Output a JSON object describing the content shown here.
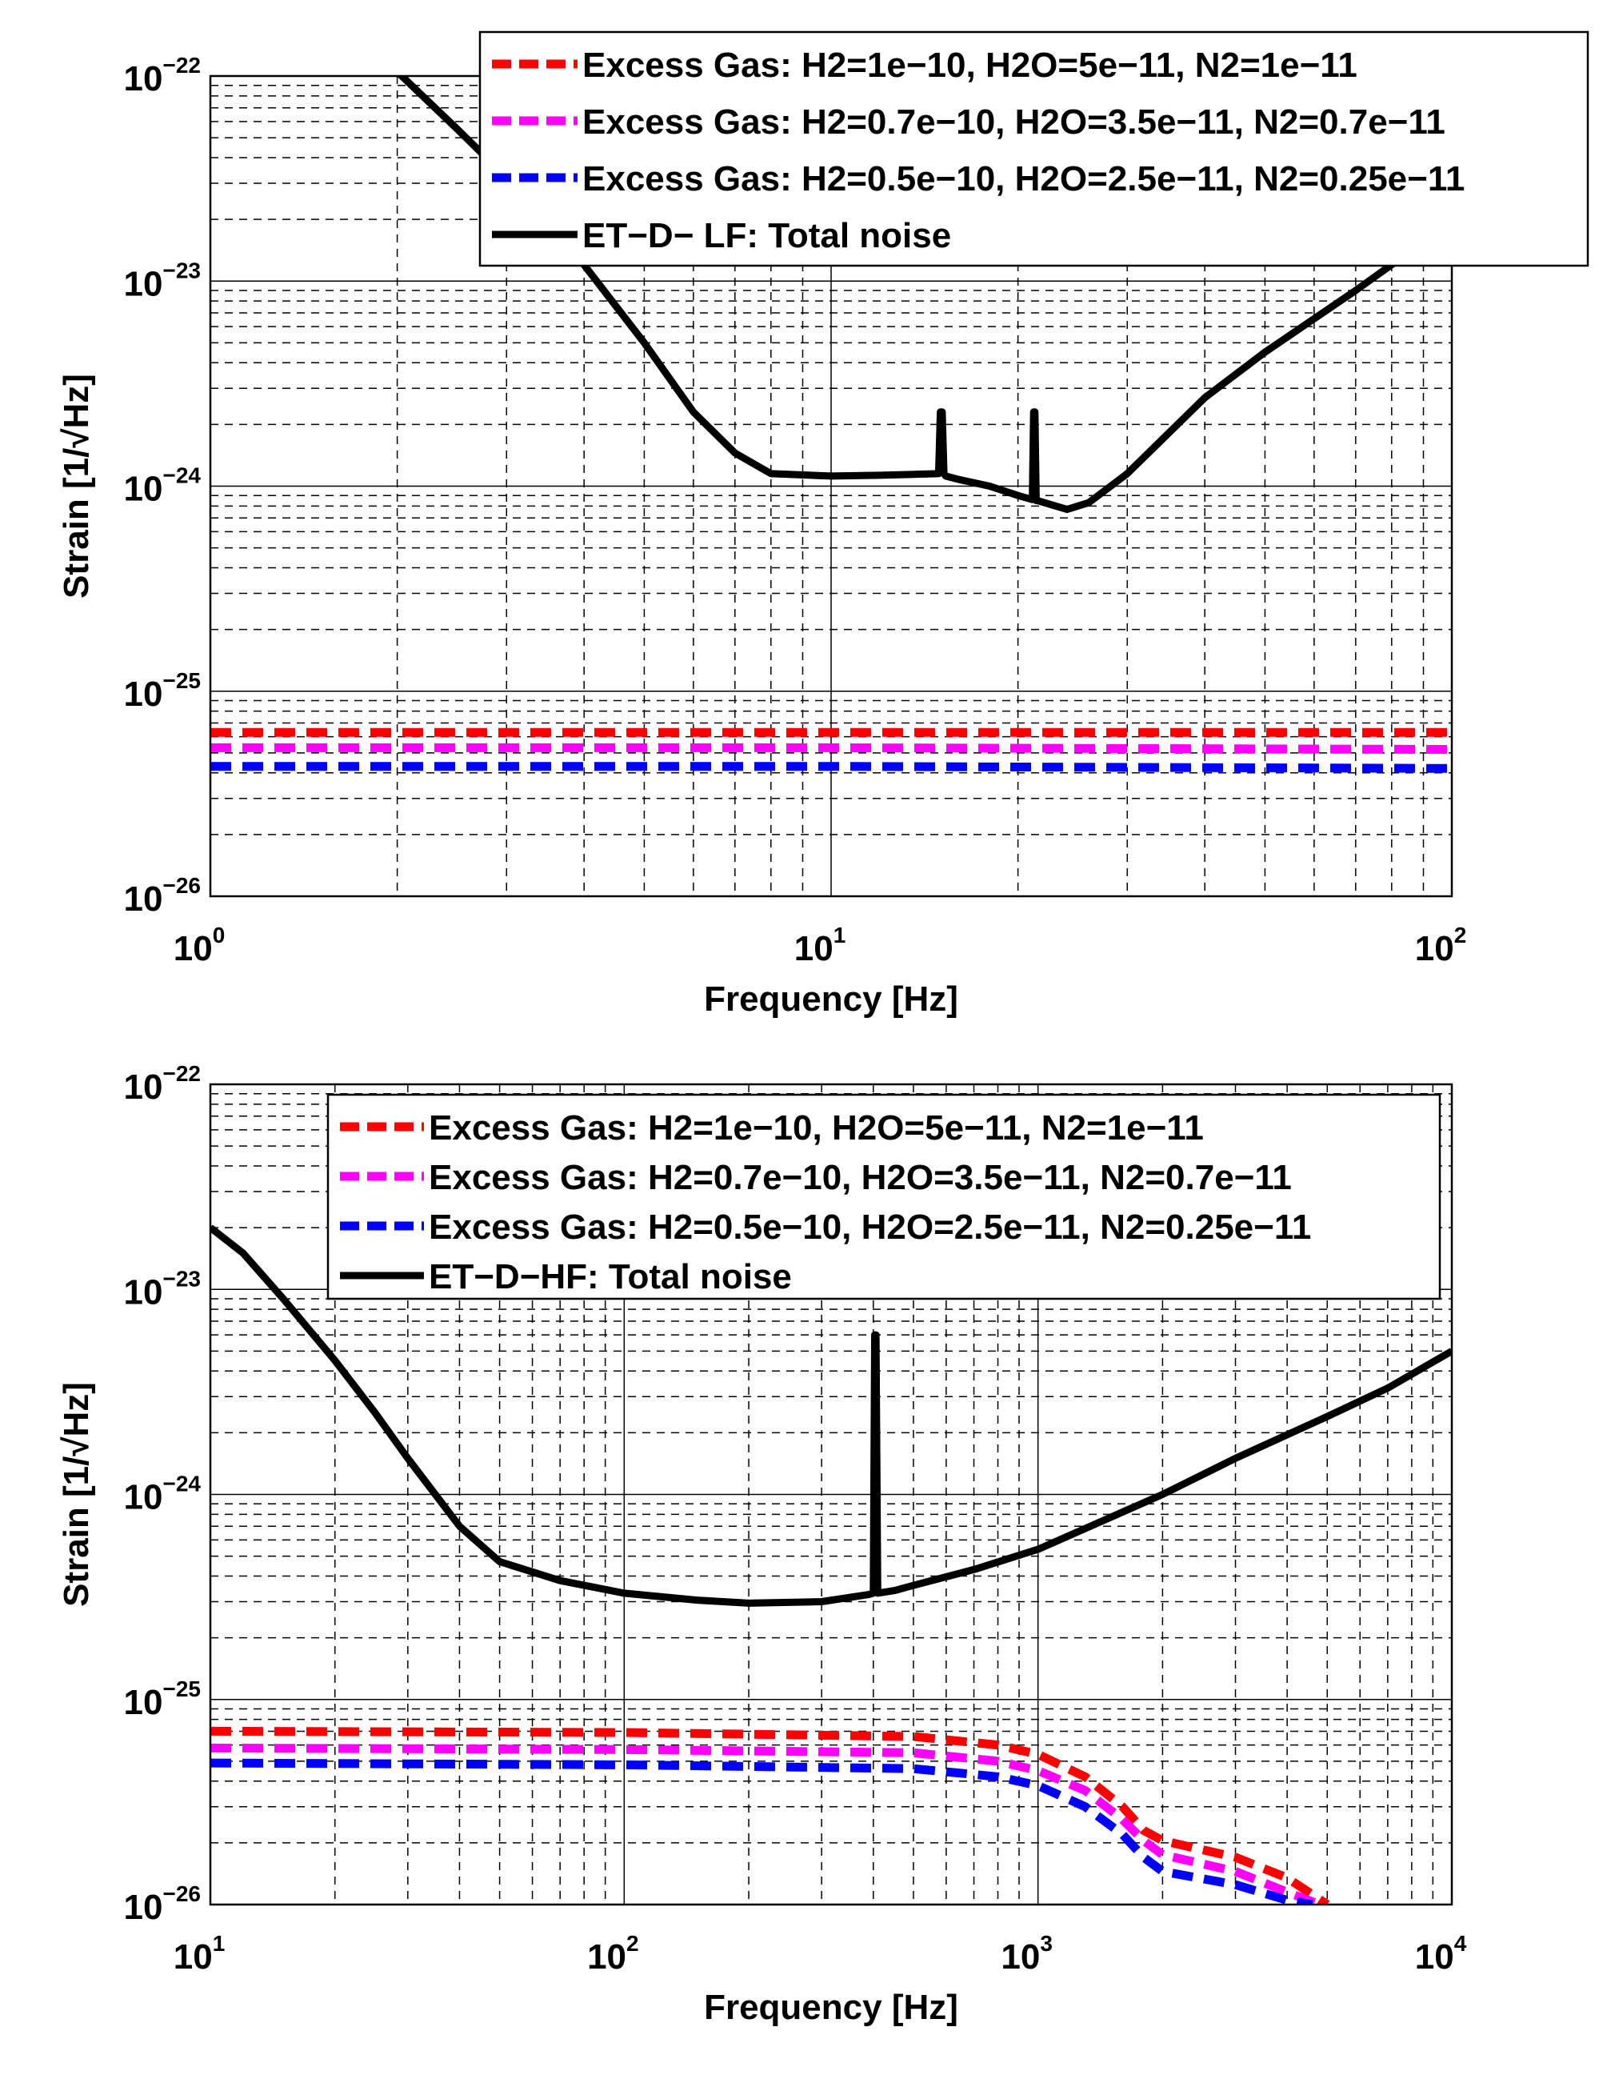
{
  "chart_data": [
    {
      "type": "line",
      "title": "",
      "xlabel": "Frequency [Hz]",
      "ylabel": "Strain [1/√Hz]",
      "xscale": "log",
      "yscale": "log",
      "xlim": [
        1,
        100
      ],
      "ylim": [
        1e-26,
        1e-22
      ],
      "grid": true,
      "legend_position": "top-right",
      "x_ticks": [
        {
          "base": "10",
          "exp": "0",
          "value": 1
        },
        {
          "base": "10",
          "exp": "1",
          "value": 10
        },
        {
          "base": "10",
          "exp": "2",
          "value": 100
        }
      ],
      "y_ticks": [
        {
          "base": "10",
          "exp": "−22",
          "value": 1e-22
        },
        {
          "base": "10",
          "exp": "−23",
          "value": 1e-23
        },
        {
          "base": "10",
          "exp": "−24",
          "value": 1e-24
        },
        {
          "base": "10",
          "exp": "−25",
          "value": 1e-25
        },
        {
          "base": "10",
          "exp": "−26",
          "value": 1e-26
        }
      ],
      "series": [
        {
          "name": "Excess Gas: H2=1e−10, H2O=5e−11, N2=1e−11",
          "color": "#ff0000",
          "style": "dashed",
          "x": [
            1,
            10,
            100
          ],
          "y": [
            6.3e-26,
            6.3e-26,
            6.3e-26
          ]
        },
        {
          "name": "Excess Gas: H2=0.7e−10, H2O=3.5e−11, N2=0.7e−11",
          "color": "#ff00ff",
          "style": "dashed",
          "x": [
            1,
            10,
            100
          ],
          "y": [
            5.3e-26,
            5.3e-26,
            5.2e-26
          ]
        },
        {
          "name": "Excess Gas: H2=0.5e−10, H2O=2.5e−11, N2=0.25e−11",
          "color": "#0000ff",
          "style": "dashed",
          "x": [
            1,
            10,
            100
          ],
          "y": [
            4.3e-26,
            4.3e-26,
            4.2e-26
          ]
        },
        {
          "name": "ET−D− LF: Total noise",
          "color": "#000000",
          "style": "solid",
          "x": [
            1.75,
            2,
            2.5,
            3,
            4,
            5,
            6,
            7,
            8,
            10,
            12,
            14.9,
            15,
            15.1,
            15.2,
            15.3,
            16,
            18,
            20,
            21.1,
            21.2,
            21.3,
            21.4,
            21.5,
            24,
            26,
            30,
            40,
            50,
            70,
            100
          ],
          "y": [
            1.6e-22,
            1.05e-22,
            5.5e-23,
            3.2e-23,
            1.2e-23,
            5e-24,
            2.3e-24,
            1.45e-24,
            1.15e-24,
            1.12e-24,
            1.13e-24,
            1.15e-24,
            2.3e-24,
            2.3e-24,
            1.15e-24,
            1.12e-24,
            1.08e-24,
            1e-24,
            9e-25,
            8.6e-25,
            2.3e-24,
            2.3e-24,
            8.5e-25,
            8.5e-25,
            7.7e-25,
            8.3e-25,
            1.15e-24,
            2.7e-24,
            4.5e-24,
            9e-24,
            1.95e-23
          ]
        }
      ]
    },
    {
      "type": "line",
      "title": "",
      "xlabel": "Frequency [Hz]",
      "ylabel": "Strain [1/√Hz]",
      "xscale": "log",
      "yscale": "log",
      "xlim": [
        10,
        10000
      ],
      "ylim": [
        1e-26,
        1e-22
      ],
      "grid": true,
      "legend_position": "top-right",
      "x_ticks": [
        {
          "base": "10",
          "exp": "1",
          "value": 10
        },
        {
          "base": "10",
          "exp": "2",
          "value": 100
        },
        {
          "base": "10",
          "exp": "3",
          "value": 1000
        },
        {
          "base": "10",
          "exp": "4",
          "value": 10000
        }
      ],
      "y_ticks": [
        {
          "base": "10",
          "exp": "−22",
          "value": 1e-22
        },
        {
          "base": "10",
          "exp": "−23",
          "value": 1e-23
        },
        {
          "base": "10",
          "exp": "−24",
          "value": 1e-24
        },
        {
          "base": "10",
          "exp": "−25",
          "value": 1e-25
        },
        {
          "base": "10",
          "exp": "−26",
          "value": 1e-26
        }
      ],
      "series": [
        {
          "name": "Excess Gas: H2=1e−10, H2O=5e−11, N2=1e−11",
          "color": "#ff0000",
          "style": "dashed",
          "x": [
            10,
            100,
            500,
            800,
            1000,
            1300,
            1600,
            1800,
            2000,
            3000,
            4000,
            5000
          ],
          "y": [
            7e-26,
            6.9e-26,
            6.6e-26,
            6e-26,
            5.4e-26,
            4.2e-26,
            3e-26,
            2.3e-26,
            2.05e-26,
            1.7e-26,
            1.35e-26,
            1e-26
          ]
        },
        {
          "name": "Excess Gas: H2=0.7e−10, H2O=3.5e−11, N2=0.7e−11",
          "color": "#ff00ff",
          "style": "dashed",
          "x": [
            10,
            100,
            500,
            800,
            1000,
            1300,
            1600,
            1800,
            2000,
            3000,
            4000,
            4800
          ],
          "y": [
            5.8e-26,
            5.7e-26,
            5.5e-26,
            5e-26,
            4.5e-26,
            3.6e-26,
            2.6e-26,
            2.05e-26,
            1.75e-26,
            1.45e-26,
            1.15e-26,
            1e-26
          ]
        },
        {
          "name": "Excess Gas: H2=0.5e−10, H2O=2.5e−11, N2=0.25e−11",
          "color": "#0000ff",
          "style": "dashed",
          "x": [
            10,
            100,
            500,
            800,
            1000,
            1300,
            1600,
            1800,
            2000,
            3000,
            4000,
            4600
          ],
          "y": [
            4.9e-26,
            4.8e-26,
            4.6e-26,
            4.2e-26,
            3.8e-26,
            3e-26,
            2.2e-26,
            1.7e-26,
            1.45e-26,
            1.25e-26,
            1.05e-26,
            1e-26
          ]
        },
        {
          "name": "ET−D−HF: Total noise",
          "color": "#000000",
          "style": "solid",
          "x": [
            10,
            12,
            15,
            20,
            25,
            30,
            40,
            50,
            70,
            100,
            150,
            200,
            300,
            390,
            400,
            403,
            406,
            410,
            450,
            500,
            700,
            1000,
            2000,
            3000,
            5000,
            7000,
            10000
          ],
          "y": [
            2e-23,
            1.5e-23,
            9e-24,
            4.5e-24,
            2.5e-24,
            1.5e-24,
            7e-25,
            4.7e-25,
            3.8e-25,
            3.3e-25,
            3.05e-25,
            2.95e-25,
            3e-25,
            3.25e-25,
            3.3e-25,
            6e-24,
            6e-24,
            3.3e-25,
            3.4e-25,
            3.6e-25,
            4.3e-25,
            5.4e-25,
            1e-24,
            1.5e-24,
            2.4e-24,
            3.3e-24,
            5e-24
          ]
        }
      ]
    }
  ]
}
